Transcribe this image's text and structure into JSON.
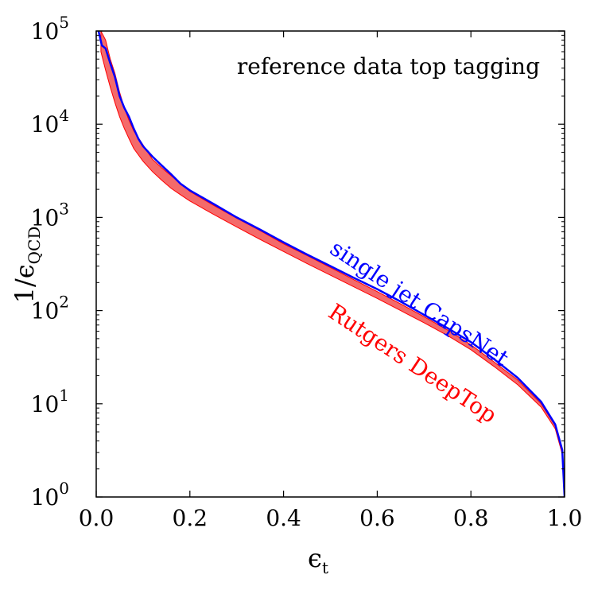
{
  "chart_data": {
    "type": "line",
    "title": "",
    "annotation": "reference data top tagging",
    "xlabel": {
      "main": "ϵ",
      "sub": "t"
    },
    "ylabel": {
      "prefix": "1/",
      "main": "ϵ",
      "sub": "QCD"
    },
    "xlim": [
      0.0,
      1.0
    ],
    "ylim": [
      1,
      100000
    ],
    "yscale": "log",
    "grid": false,
    "legend": "inline labels on curves",
    "x_ticks": [
      "0.0",
      "0.2",
      "0.4",
      "0.6",
      "0.8",
      "1.0"
    ],
    "y_ticks": [
      {
        "base": "10",
        "exp": "0"
      },
      {
        "base": "10",
        "exp": "1"
      },
      {
        "base": "10",
        "exp": "2"
      },
      {
        "base": "10",
        "exp": "3"
      },
      {
        "base": "10",
        "exp": "4"
      },
      {
        "base": "10",
        "exp": "5"
      }
    ],
    "series": [
      {
        "name": "single jet CapsNet",
        "color": "#0000ff",
        "style": "line",
        "points": [
          [
            0.005,
            100000
          ],
          [
            0.012,
            70000
          ],
          [
            0.02,
            65000
          ],
          [
            0.03,
            45000
          ],
          [
            0.04,
            32000
          ],
          [
            0.05,
            20000
          ],
          [
            0.06,
            15000
          ],
          [
            0.07,
            12000
          ],
          [
            0.08,
            9000
          ],
          [
            0.09,
            7000
          ],
          [
            0.1,
            5800
          ],
          [
            0.12,
            4500
          ],
          [
            0.14,
            3600
          ],
          [
            0.16,
            2900
          ],
          [
            0.18,
            2300
          ],
          [
            0.2,
            1950
          ],
          [
            0.25,
            1400
          ],
          [
            0.3,
            1000
          ],
          [
            0.35,
            740
          ],
          [
            0.4,
            540
          ],
          [
            0.45,
            400
          ],
          [
            0.5,
            300
          ],
          [
            0.55,
            225
          ],
          [
            0.6,
            170
          ],
          [
            0.65,
            125
          ],
          [
            0.7,
            90
          ],
          [
            0.75,
            65
          ],
          [
            0.8,
            46
          ],
          [
            0.85,
            30
          ],
          [
            0.9,
            19
          ],
          [
            0.95,
            10.5
          ],
          [
            0.98,
            6
          ],
          [
            0.995,
            3.2
          ],
          [
            1.0,
            1
          ]
        ]
      },
      {
        "name": "Rutgers DeepTop",
        "color": "#ff0000",
        "fill_color": "#f46a6a",
        "style": "band",
        "upper": [
          [
            0.01,
            100000
          ],
          [
            0.02,
            80000
          ],
          [
            0.03,
            50000
          ],
          [
            0.04,
            35000
          ],
          [
            0.05,
            22000
          ],
          [
            0.06,
            15000
          ],
          [
            0.07,
            11000
          ],
          [
            0.08,
            8500
          ],
          [
            0.1,
            6000
          ],
          [
            0.12,
            4200
          ],
          [
            0.14,
            3400
          ],
          [
            0.16,
            2800
          ],
          [
            0.18,
            2300
          ],
          [
            0.2,
            1900
          ],
          [
            0.25,
            1350
          ],
          [
            0.3,
            980
          ],
          [
            0.35,
            720
          ],
          [
            0.4,
            520
          ],
          [
            0.45,
            390
          ],
          [
            0.5,
            290
          ],
          [
            0.55,
            215
          ],
          [
            0.6,
            160
          ],
          [
            0.65,
            118
          ],
          [
            0.7,
            86
          ],
          [
            0.75,
            62
          ],
          [
            0.8,
            43
          ],
          [
            0.85,
            28
          ],
          [
            0.9,
            18
          ],
          [
            0.95,
            10
          ],
          [
            0.98,
            5.8
          ],
          [
            0.995,
            3.1
          ],
          [
            1.0,
            1
          ]
        ],
        "lower": [
          [
            0.01,
            60000
          ],
          [
            0.02,
            38000
          ],
          [
            0.03,
            25000
          ],
          [
            0.04,
            17000
          ],
          [
            0.05,
            12000
          ],
          [
            0.06,
            9000
          ],
          [
            0.07,
            7000
          ],
          [
            0.08,
            5500
          ],
          [
            0.1,
            4000
          ],
          [
            0.12,
            3100
          ],
          [
            0.14,
            2500
          ],
          [
            0.16,
            2050
          ],
          [
            0.18,
            1750
          ],
          [
            0.2,
            1500
          ],
          [
            0.25,
            1080
          ],
          [
            0.3,
            790
          ],
          [
            0.35,
            580
          ],
          [
            0.4,
            430
          ],
          [
            0.45,
            320
          ],
          [
            0.5,
            240
          ],
          [
            0.55,
            180
          ],
          [
            0.6,
            135
          ],
          [
            0.65,
            100
          ],
          [
            0.7,
            74
          ],
          [
            0.75,
            54
          ],
          [
            0.8,
            38
          ],
          [
            0.85,
            25
          ],
          [
            0.9,
            16
          ],
          [
            0.95,
            9.2
          ],
          [
            0.98,
            5.4
          ],
          [
            0.995,
            2.9
          ],
          [
            1.0,
            1
          ]
        ]
      }
    ],
    "curve_labels": [
      {
        "text": "single jet CapsNet",
        "color": "#0000ff",
        "angle": 33.5
      },
      {
        "text": "Rutgers DeepTop",
        "color": "#ff0000",
        "angle": 33.5
      }
    ]
  }
}
